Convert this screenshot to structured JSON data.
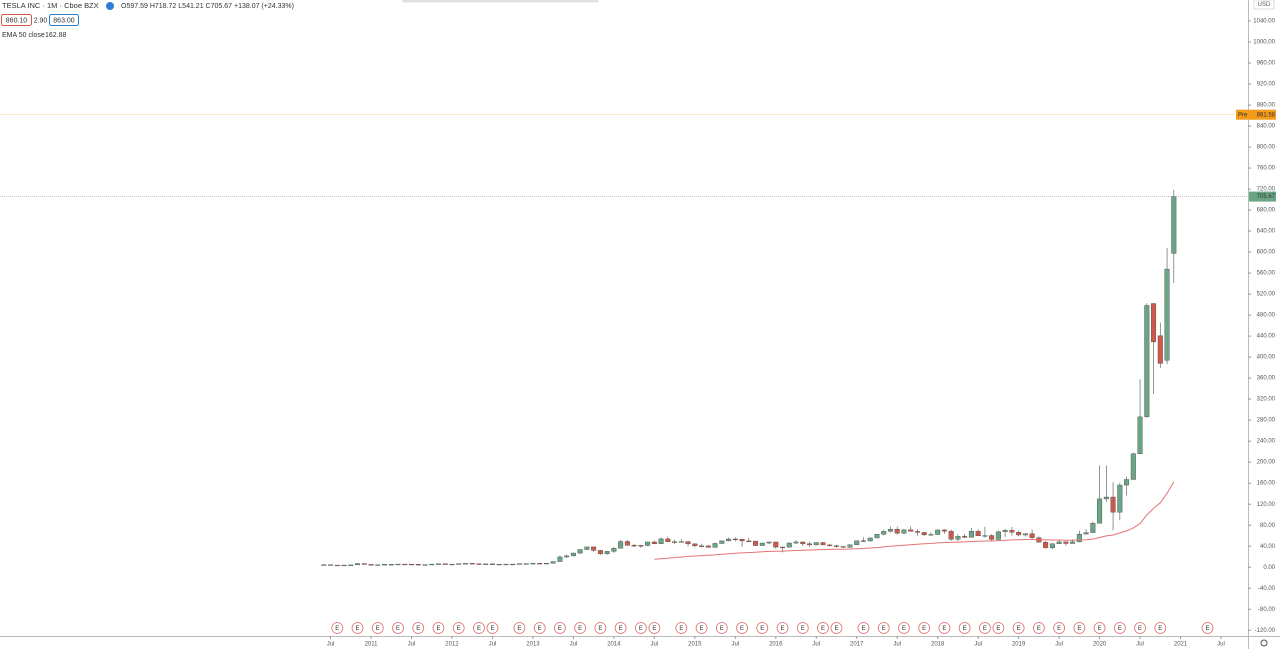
{
  "chart_data": {
    "type": "candlestick",
    "title": "TESLA INC · 1M · Cboe BZX",
    "ohlc_labels": [
      "O",
      "H",
      "L",
      "C"
    ],
    "change": "+138.07 (+24.33%)",
    "bid": "860.10",
    "spread": "2.90",
    "ask": "863.00",
    "currency": "USD",
    "pre_market": {
      "label": "Pre",
      "value": 861.58,
      "color": "#f59b1a"
    },
    "up_color": "#6aa585",
    "down_color": "#d0574b",
    "x": [
      "2010-06",
      "2010-07",
      "2010-08",
      "2010-09",
      "2010-10",
      "2010-11",
      "2010-12",
      "2011-01",
      "2011-02",
      "2011-03",
      "2011-04",
      "2011-05",
      "2011-06",
      "2011-07",
      "2011-08",
      "2011-09",
      "2011-10",
      "2011-11",
      "2011-12",
      "2012-01",
      "2012-02",
      "2012-03",
      "2012-04",
      "2012-05",
      "2012-06",
      "2012-07",
      "2012-08",
      "2012-09",
      "2012-10",
      "2012-11",
      "2012-12",
      "2013-01",
      "2013-02",
      "2013-03",
      "2013-04",
      "2013-05",
      "2013-06",
      "2013-07",
      "2013-08",
      "2013-09",
      "2013-10",
      "2013-11",
      "2013-12",
      "2014-01",
      "2014-02",
      "2014-03",
      "2014-04",
      "2014-05",
      "2014-06",
      "2014-07",
      "2014-08",
      "2014-09",
      "2014-10",
      "2014-11",
      "2014-12",
      "2015-01",
      "2015-02",
      "2015-03",
      "2015-04",
      "2015-05",
      "2015-06",
      "2015-07",
      "2015-08",
      "2015-09",
      "2015-10",
      "2015-11",
      "2015-12",
      "2016-01",
      "2016-02",
      "2016-03",
      "2016-04",
      "2016-05",
      "2016-06",
      "2016-07",
      "2016-08",
      "2016-09",
      "2016-10",
      "2016-11",
      "2016-12",
      "2017-01",
      "2017-02",
      "2017-03",
      "2017-04",
      "2017-05",
      "2017-06",
      "2017-07",
      "2017-08",
      "2017-09",
      "2017-10",
      "2017-11",
      "2017-12",
      "2018-01",
      "2018-02",
      "2018-03",
      "2018-04",
      "2018-05",
      "2018-06",
      "2018-07",
      "2018-08",
      "2018-09",
      "2018-10",
      "2018-11",
      "2018-12",
      "2019-01",
      "2019-02",
      "2019-03",
      "2019-04",
      "2019-05",
      "2019-06",
      "2019-07",
      "2019-08",
      "2019-09",
      "2019-10",
      "2019-11",
      "2019-12",
      "2020-01",
      "2020-02",
      "2020-03",
      "2020-04",
      "2020-05",
      "2020-06",
      "2020-07",
      "2020-08",
      "2020-09",
      "2020-10",
      "2020-11",
      "2020-12"
    ],
    "open": [
      3.8,
      4.8,
      4.0,
      3.9,
      4.1,
      4.4,
      7.0,
      5.3,
      4.8,
      4.8,
      5.5,
      5.5,
      5.9,
      5.8,
      5.6,
      4.9,
      4.9,
      5.8,
      6.5,
      5.7,
      5.8,
      6.7,
      7.4,
      6.6,
      5.9,
      6.3,
      5.6,
      5.7,
      5.9,
      5.6,
      6.8,
      6.8,
      7.5,
      7.0,
      7.6,
      10.8,
      19.5,
      21.5,
      26.9,
      33.7,
      38.7,
      32.0,
      25.5,
      30.1,
      36.2,
      48.9,
      41.7,
      41.5,
      41.3,
      48.0,
      44.7,
      53.9,
      48.5,
      48.3,
      48.8,
      44.5,
      40.7,
      40.6,
      37.8,
      45.2,
      50.1,
      53.7,
      53.3,
      50.0,
      49.7,
      41.2,
      46.0,
      48.0,
      38.3,
      38.2,
      46.0,
      48.0,
      44.7,
      42.5,
      47.0,
      42.4,
      40.8,
      39.4,
      37.9,
      42.7,
      50.4,
      50.0,
      55.7,
      62.8,
      68.2,
      72.3,
      64.7,
      71.1,
      68.2,
      66.3,
      61.6,
      62.3,
      70.9,
      68.6,
      53.2,
      58.8,
      56.9,
      68.6,
      59.8,
      60.3,
      52.9,
      67.5,
      70.1,
      66.6,
      61.4,
      63.9,
      56.0,
      47.7,
      37.0,
      44.7,
      48.3,
      45.1,
      48.2,
      63.0,
      65.9,
      83.7,
      130.1,
      133.6,
      104.8,
      156.4,
      167.0,
      216.0,
      286.2,
      502.1,
      440.8,
      394.0,
      597.59
    ],
    "high": [
      5.6,
      4.9,
      4.3,
      4.3,
      4.5,
      7.3,
      7.2,
      5.4,
      5.0,
      5.7,
      5.8,
      6.0,
      6.3,
      6.2,
      5.7,
      5.2,
      6.0,
      6.9,
      6.7,
      6.1,
      7.0,
      7.6,
      7.6,
      6.7,
      6.6,
      6.5,
      5.9,
      6.3,
      6.1,
      7.0,
      7.1,
      8.0,
      8.0,
      8.0,
      11.0,
      22.0,
      24.0,
      27.8,
      34.0,
      39.0,
      39.0,
      32.4,
      31.0,
      37.9,
      51.9,
      51.7,
      44.2,
      42.8,
      48.7,
      50.8,
      56.5,
      58.2,
      52.3,
      53.3,
      49.7,
      45.0,
      44.3,
      41.8,
      46.8,
      50.5,
      56.3,
      56.5,
      54.1,
      55.9,
      46.8,
      46.8,
      48.7,
      48.4,
      39.7,
      47.3,
      51.2,
      49.1,
      48.4,
      47.6,
      47.9,
      44.1,
      42.5,
      39.8,
      43.3,
      50.5,
      57.0,
      56.3,
      62.9,
      71.9,
      77.4,
      77.4,
      73.0,
      77.6,
      72.6,
      63.7,
      66.3,
      72.0,
      72.6,
      71.6,
      62.5,
      63.2,
      74.6,
      72.0,
      77.1,
      62.8,
      70.0,
      72.9,
      76.5,
      69.3,
      62.7,
      71.4,
      58.6,
      50.2,
      45.4,
      53.1,
      48.3,
      53.2,
      69.4,
      72.2,
      87.0,
      194.0,
      193.8,
      161.4,
      160.6,
      172.8,
      217.6,
      358.0,
      502.5,
      502.5,
      465.9,
      607.8,
      718.72
    ],
    "low": [
      3.0,
      3.2,
      3.4,
      3.7,
      3.9,
      4.3,
      5.1,
      4.4,
      4.3,
      4.4,
      5.0,
      5.2,
      5.1,
      5.3,
      4.3,
      4.6,
      4.8,
      5.7,
      5.4,
      5.3,
      5.7,
      6.4,
      6.4,
      5.5,
      5.6,
      5.2,
      5.2,
      5.5,
      5.4,
      5.4,
      6.5,
      6.6,
      6.9,
      7.0,
      7.1,
      10.6,
      17.4,
      21.2,
      25.4,
      32.8,
      29.3,
      23.4,
      23.7,
      27.3,
      36.0,
      40.5,
      38.7,
      37.1,
      40.3,
      44.0,
      43.6,
      47.8,
      44.5,
      47.3,
      39.3,
      37.9,
      38.1,
      37.1,
      37.3,
      44.4,
      49.5,
      49.0,
      39.2,
      47.8,
      40.6,
      41.2,
      44.1,
      35.3,
      28.2,
      38.0,
      44.1,
      40.3,
      39.1,
      41.4,
      42.3,
      39.1,
      37.2,
      36.6,
      36.9,
      42.3,
      48.2,
      48.4,
      55.0,
      61.0,
      66.4,
      62.6,
      63.2,
      68.1,
      60.0,
      59.5,
      60.2,
      61.3,
      63.8,
      50.1,
      49.6,
      55.4,
      56.2,
      59.3,
      56.2,
      50.6,
      50.2,
      58.0,
      59.8,
      58.6,
      58.8,
      54.0,
      47.1,
      35.4,
      34.2,
      45.0,
      41.0,
      44.9,
      47.6,
      62.5,
      65.6,
      84.3,
      124.0,
      70.1,
      89.3,
      136.6,
      170.8,
      215.4,
      285.0,
      329.9,
      379.1,
      386.6,
      541.21
    ],
    "close": [
      4.8,
      4.0,
      3.9,
      4.1,
      4.4,
      7.0,
      5.3,
      4.8,
      4.8,
      5.5,
      5.5,
      5.9,
      5.8,
      5.6,
      4.9,
      4.9,
      5.8,
      6.5,
      5.7,
      5.8,
      6.7,
      7.4,
      6.6,
      5.9,
      6.3,
      5.6,
      5.7,
      5.9,
      5.6,
      6.8,
      6.8,
      7.5,
      7.0,
      7.6,
      10.8,
      19.5,
      21.5,
      26.9,
      33.7,
      38.7,
      32.0,
      25.5,
      30.1,
      36.2,
      48.9,
      41.7,
      41.5,
      41.3,
      48.0,
      44.7,
      53.9,
      48.5,
      48.3,
      48.8,
      44.5,
      40.7,
      40.6,
      37.8,
      45.2,
      50.1,
      53.7,
      53.3,
      50.0,
      49.7,
      41.2,
      46.0,
      48.0,
      38.3,
      38.2,
      46.0,
      48.0,
      44.7,
      42.5,
      47.0,
      42.4,
      40.8,
      39.4,
      37.9,
      42.7,
      50.4,
      50.0,
      55.7,
      62.8,
      68.2,
      72.3,
      64.7,
      71.1,
      68.2,
      66.3,
      61.6,
      62.3,
      70.9,
      68.6,
      53.2,
      58.8,
      56.9,
      68.6,
      59.8,
      60.3,
      52.9,
      67.5,
      70.1,
      66.6,
      61.4,
      63.9,
      56.0,
      47.7,
      37.0,
      44.7,
      48.3,
      45.1,
      48.2,
      63.0,
      65.9,
      83.7,
      130.1,
      133.6,
      104.8,
      156.4,
      167.0,
      216.0,
      286.2,
      498.3,
      429.0,
      388.0,
      567.6,
      705.67
    ],
    "ema": {
      "name": "EMA 50 close",
      "color": "#e57373",
      "values": [
        null,
        null,
        null,
        null,
        null,
        null,
        null,
        null,
        null,
        null,
        null,
        null,
        null,
        null,
        null,
        null,
        null,
        null,
        null,
        null,
        null,
        null,
        null,
        null,
        null,
        null,
        null,
        null,
        null,
        null,
        null,
        null,
        null,
        null,
        null,
        null,
        null,
        null,
        null,
        null,
        null,
        null,
        null,
        null,
        null,
        null,
        null,
        null,
        null,
        15,
        16,
        17,
        18.5,
        19.5,
        20.5,
        21.3,
        22,
        22.6,
        23.5,
        24.5,
        25.5,
        26.4,
        27.3,
        28,
        28.6,
        29.3,
        30,
        30.3,
        30.6,
        31.2,
        31.8,
        32.3,
        32.7,
        33.2,
        33.6,
        33.9,
        34.1,
        34.3,
        34.6,
        35.2,
        35.8,
        36.5,
        37.5,
        38.6,
        39.9,
        40.8,
        41.9,
        42.9,
        43.8,
        44.5,
        45.2,
        46.2,
        47.1,
        47.3,
        47.8,
        48.1,
        48.9,
        49.3,
        49.8,
        49.9,
        50.6,
        51.3,
        51.9,
        52.3,
        52.7,
        52.8,
        52.6,
        52.1,
        51.8,
        51.7,
        51.5,
        51.4,
        51.9,
        52.4,
        53.6,
        56.6,
        59.6,
        61.3,
        65.1,
        69.1,
        74.9,
        83.1,
        99.4,
        112.1,
        122.6,
        140.6,
        162.88
      ]
    },
    "earnings_label": "E",
    "earnings": [
      "2010-08",
      "2010-11",
      "2011-02",
      "2011-05",
      "2011-08",
      "2011-11",
      "2012-02",
      "2012-05",
      "2012-07",
      "2012-11",
      "2013-02",
      "2013-05",
      "2013-08",
      "2013-11",
      "2014-02",
      "2014-05",
      "2014-07",
      "2014-11",
      "2015-02",
      "2015-05",
      "2015-08",
      "2015-11",
      "2016-02",
      "2016-05",
      "2016-08",
      "2016-10",
      "2017-02",
      "2017-05",
      "2017-08",
      "2017-11",
      "2018-02",
      "2018-05",
      "2018-08",
      "2018-10",
      "2019-01",
      "2019-04",
      "2019-07",
      "2019-10",
      "2020-01",
      "2020-04",
      "2020-07",
      "2020-10",
      "2021-05"
    ],
    "xlim": [
      "2006-06",
      "2021-11"
    ],
    "xticks": [
      {
        "value": "2010-07",
        "label": "Jul"
      },
      {
        "value": "2011-01",
        "label": "2011"
      },
      {
        "value": "2011-07",
        "label": "Jul"
      },
      {
        "value": "2012-01",
        "label": "2012"
      },
      {
        "value": "2012-07",
        "label": "Jul"
      },
      {
        "value": "2013-01",
        "label": "2013"
      },
      {
        "value": "2013-07",
        "label": "Jul"
      },
      {
        "value": "2014-01",
        "label": "2014"
      },
      {
        "value": "2014-07",
        "label": "Jul"
      },
      {
        "value": "2015-01",
        "label": "2015"
      },
      {
        "value": "2015-07",
        "label": "Jul"
      },
      {
        "value": "2016-01",
        "label": "2016"
      },
      {
        "value": "2016-07",
        "label": "Jul"
      },
      {
        "value": "2017-01",
        "label": "2017"
      },
      {
        "value": "2017-07",
        "label": "Jul"
      },
      {
        "value": "2018-01",
        "label": "2018"
      },
      {
        "value": "2018-07",
        "label": "Jul"
      },
      {
        "value": "2019-01",
        "label": "2019"
      },
      {
        "value": "2019-07",
        "label": "Jul"
      },
      {
        "value": "2020-01",
        "label": "2020"
      },
      {
        "value": "2020-07",
        "label": "Jul"
      },
      {
        "value": "2021-01",
        "label": "2021"
      },
      {
        "value": "2021-07",
        "label": "Jul"
      }
    ],
    "ylim": [
      -131,
      1080
    ],
    "yticks": [
      {
        "value": -120,
        "label": "-120.00"
      },
      {
        "value": -80,
        "label": "-80.00"
      },
      {
        "value": -40,
        "label": "-40.00"
      },
      {
        "value": 0,
        "label": "0.00"
      },
      {
        "value": 40,
        "label": "40.00"
      },
      {
        "value": 80,
        "label": "80.00"
      },
      {
        "value": 120,
        "label": "120.00"
      },
      {
        "value": 160,
        "label": "160.00"
      },
      {
        "value": 200,
        "label": "200.00"
      },
      {
        "value": 240,
        "label": "240.00"
      },
      {
        "value": 280,
        "label": "280.00"
      },
      {
        "value": 320,
        "label": "320.00"
      },
      {
        "value": 360,
        "label": "360.00"
      },
      {
        "value": 400,
        "label": "400.00"
      },
      {
        "value": 440,
        "label": "440.00"
      },
      {
        "value": 480,
        "label": "480.00"
      },
      {
        "value": 520,
        "label": "520.00"
      },
      {
        "value": 560,
        "label": "560.00"
      },
      {
        "value": 600,
        "label": "600.00"
      },
      {
        "value": 640,
        "label": "640.00"
      },
      {
        "value": 680,
        "label": "680.00"
      },
      {
        "value": 720,
        "label": "720.00"
      },
      {
        "value": 760,
        "label": "760.00"
      },
      {
        "value": 800,
        "label": "800.00"
      },
      {
        "value": 840,
        "label": "840.00"
      },
      {
        "value": 880,
        "label": "880.00"
      },
      {
        "value": 920,
        "label": "920.00"
      },
      {
        "value": 960,
        "label": "960.00"
      },
      {
        "value": 1000,
        "label": "1000.00"
      },
      {
        "value": 1040,
        "label": "1040.00"
      }
    ]
  }
}
